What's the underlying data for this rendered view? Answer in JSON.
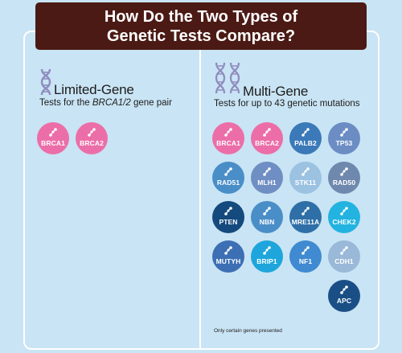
{
  "title": {
    "line1": "How Do the Two Types of",
    "line2": "Genetic Tests Compare?"
  },
  "limited": {
    "heading": "Limited-Gene",
    "sub_prefix": "Tests for the ",
    "sub_em": "BRCA1/2",
    "sub_suffix": " gene pair",
    "genes": [
      {
        "label": "BRCA1",
        "color": "#ec6ea8"
      },
      {
        "label": "BRCA2",
        "color": "#ec6ea8"
      }
    ]
  },
  "multi": {
    "heading": "Multi-Gene",
    "sub": "Tests for up to 43 genetic mutations",
    "genes": [
      {
        "label": "BRCA1",
        "color": "#ec6ea8"
      },
      {
        "label": "BRCA2",
        "color": "#ec6ea8"
      },
      {
        "label": "PALB2",
        "color": "#3b79b8"
      },
      {
        "label": "TP53",
        "color": "#6b8dc4"
      },
      {
        "label": "RAD51",
        "color": "#4a8ec8"
      },
      {
        "label": "MLH1",
        "color": "#6f8ec3"
      },
      {
        "label": "STK11",
        "color": "#9cc2e2"
      },
      {
        "label": "RAD50",
        "color": "#6f88ae"
      },
      {
        "label": "PTEN",
        "color": "#144a7e"
      },
      {
        "label": "NBN",
        "color": "#4a8ec8"
      },
      {
        "label": "MRE11A",
        "color": "#2f6fa8"
      },
      {
        "label": "CHEK2",
        "color": "#22b3e0"
      },
      {
        "label": "MUTYH",
        "color": "#3c6fb4"
      },
      {
        "label": "BRIP1",
        "color": "#1ea6dc"
      },
      {
        "label": "NF1",
        "color": "#3f8ad0"
      },
      {
        "label": "CDH1",
        "color": "#9ab8d8"
      },
      {
        "label": "APC",
        "color": "#1a4f86"
      }
    ]
  },
  "note": "Only certain genes presented",
  "colors": {
    "background": "#c9e4f4",
    "title_bg": "#4b1a14",
    "dna_purple": "#8f8cbf"
  },
  "icons": {
    "heading_icon": "dna-helix-icon",
    "gene_icon": "molecule-icon"
  }
}
